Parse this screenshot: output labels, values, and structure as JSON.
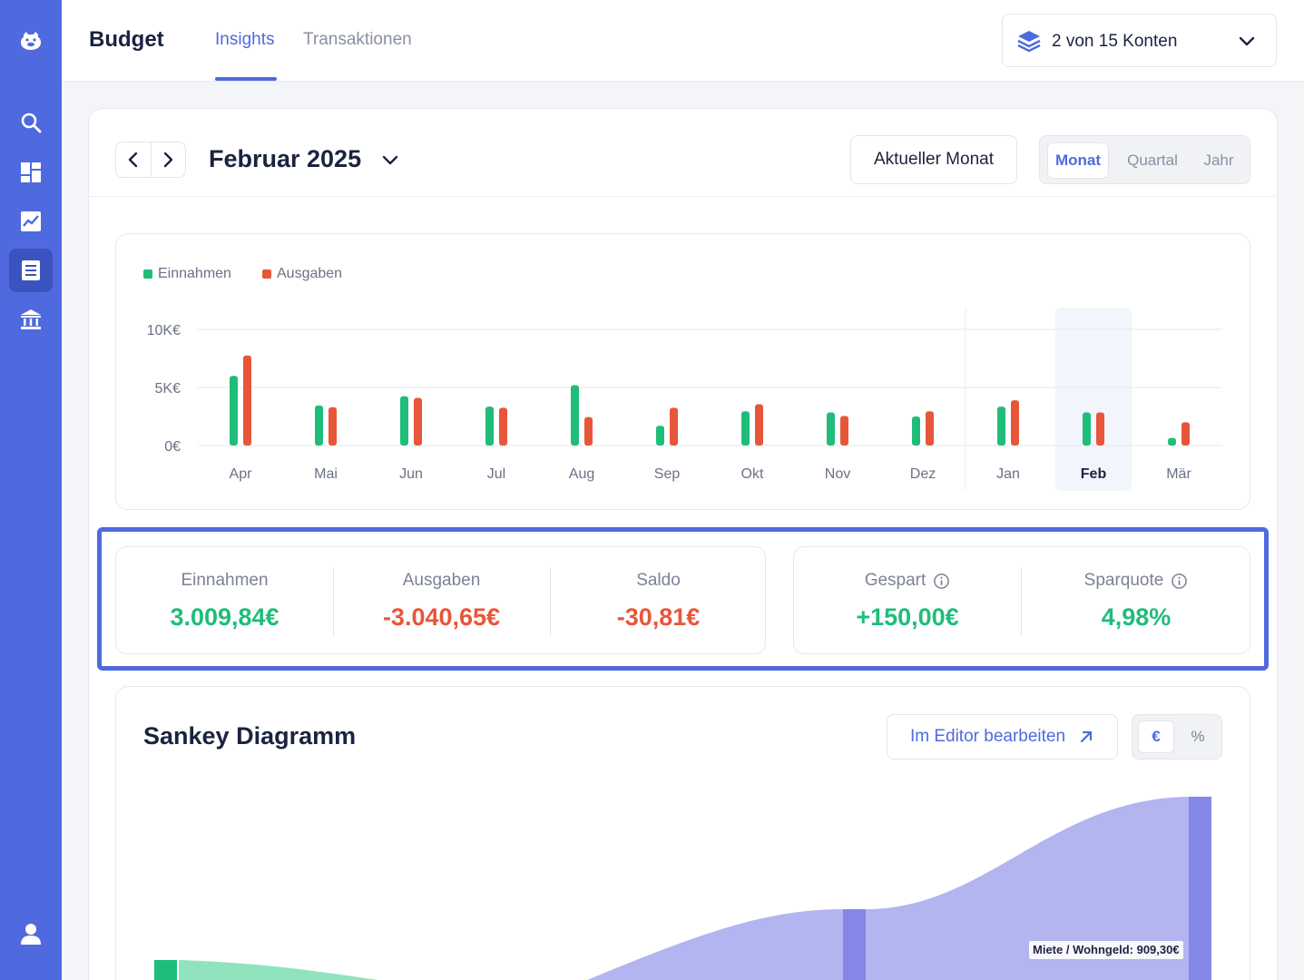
{
  "header": {
    "title": "Budget",
    "tabs": [
      {
        "label": "Insights",
        "active": true
      },
      {
        "label": "Transaktionen",
        "active": false
      }
    ],
    "account_selector": {
      "label": "2 von 15 Konten"
    }
  },
  "sidebar": {
    "items": [
      {
        "icon": "logo-icon"
      },
      {
        "icon": "search-icon"
      },
      {
        "icon": "dashboard-icon"
      },
      {
        "icon": "chart-icon"
      },
      {
        "icon": "list-icon",
        "active": true
      },
      {
        "icon": "bank-icon"
      },
      {
        "icon": "user-icon"
      }
    ]
  },
  "period": {
    "title": "Februar 2025",
    "current_label": "Aktueller Monat",
    "segments": [
      "Monat",
      "Quartal",
      "Jahr"
    ],
    "active_segment": "Monat"
  },
  "legend": {
    "income": "Einnahmen",
    "expenses": "Ausgaben"
  },
  "colors": {
    "accent": "#4f6ade",
    "income": "#1fbd7a",
    "expenses": "#e8563a",
    "sankey": "#b3b5f0"
  },
  "chart_data": {
    "type": "bar",
    "categories": [
      "Apr",
      "Mai",
      "Jun",
      "Jul",
      "Aug",
      "Sep",
      "Okt",
      "Nov",
      "Dez",
      "Jan",
      "Feb",
      "Mär"
    ],
    "series": [
      {
        "name": "Einnahmen",
        "values": [
          6000,
          3450,
          4250,
          3350,
          5200,
          1700,
          2950,
          2850,
          2500,
          3350,
          2850,
          650
        ]
      },
      {
        "name": "Ausgaben",
        "values": [
          7750,
          3300,
          4100,
          3250,
          2450,
          3250,
          3550,
          2550,
          2950,
          3900,
          2850,
          2000
        ]
      }
    ],
    "yticks": [
      "10K€",
      "5K€",
      "0€"
    ],
    "ylim": [
      0,
      10000
    ],
    "selected_category": "Feb",
    "grid": true,
    "legend_position": "top-left"
  },
  "stats": {
    "income": {
      "label": "Einnahmen",
      "value": "3.009,84€"
    },
    "expenses": {
      "label": "Ausgaben",
      "value": "-3.040,65€"
    },
    "balance": {
      "label": "Saldo",
      "value": "-30,81€"
    },
    "saved": {
      "label": "Gespart",
      "value": "+150,00€"
    },
    "savings_rate": {
      "label": "Sparquote",
      "value": "4,98%"
    }
  },
  "sankey": {
    "title": "Sankey Diagramm",
    "editor_label": "Im Editor bearbeiten",
    "units": [
      "€",
      "%"
    ],
    "active_unit": "€",
    "node_label": "Miete / Wohngeld: 909,30€"
  }
}
